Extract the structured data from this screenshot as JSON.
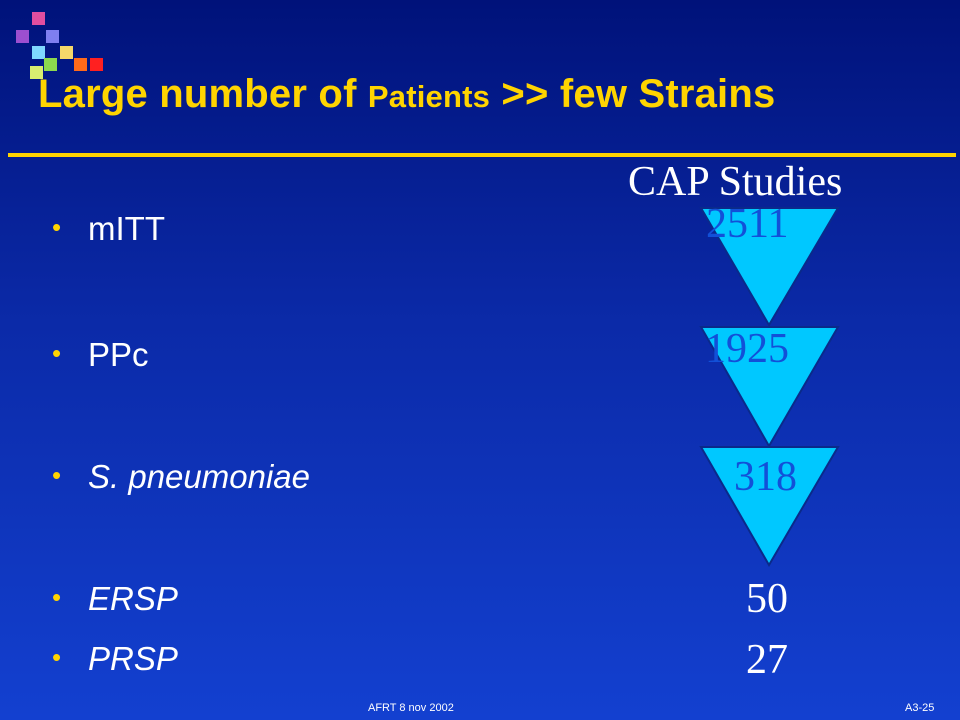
{
  "slide": {
    "title_part1": "Large number of ",
    "title_part2": "Patients",
    "title_part3": " >> few Strains",
    "subtitle": "CAP Studies",
    "bullets": [
      {
        "label": "mITT",
        "italic": false
      },
      {
        "label": "PPc",
        "italic": false
      },
      {
        "label": "S. pneumoniae",
        "italic": true
      },
      {
        "label": "ERSP",
        "italic": true
      },
      {
        "label": "PRSP",
        "italic": true
      }
    ],
    "funnel_values": [
      "2511",
      "1925",
      "318"
    ],
    "extra_values": [
      "50",
      "27"
    ],
    "footer_left": "AFRT 8 nov 2002",
    "footer_right": "A3-25"
  },
  "colors": {
    "background_top": "#00127a",
    "background_bottom": "#1340d0",
    "title": "#ffd400",
    "triangle_fill": "#00c8ff",
    "triangle_text": "#1250d8"
  }
}
